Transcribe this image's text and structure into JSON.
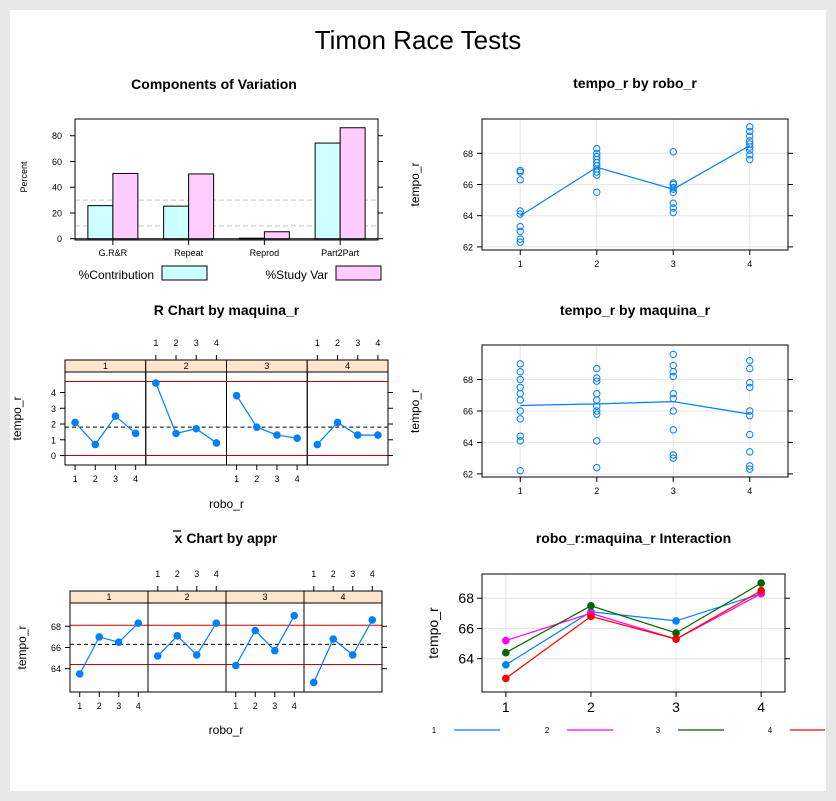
{
  "page": {
    "title": "Timon Race Tests"
  },
  "chart_data": [
    {
      "id": "components",
      "type": "bar",
      "title": "Components of Variation",
      "ylabel": "Percent",
      "categories": [
        "G.R&R",
        "Repeat",
        "Reprod",
        "Part2Part"
      ],
      "series": [
        {
          "name": "%Contribution",
          "color": "#ccffff",
          "values": [
            25.7,
            25.3,
            0.4,
            74.3
          ]
        },
        {
          "name": "%Study Var",
          "color": "#ffccff",
          "values": [
            50.7,
            50.3,
            5.4,
            86.2
          ]
        }
      ],
      "ylim": [
        -1,
        93
      ],
      "yticks": [
        "0",
        "20",
        "40",
        "60",
        "80"
      ],
      "reference_lines": [
        10,
        30
      ]
    },
    {
      "id": "tempo-by-robo",
      "type": "scatter",
      "title": "tempo_r by robo_r",
      "ylabel": "tempo_r",
      "categories": [
        "1",
        "2",
        "3",
        "4"
      ],
      "points": [
        [
          66.9,
          66.8,
          66.3,
          64.3,
          64.1,
          63.3,
          63.0,
          62.5,
          62.3
        ],
        [
          68.3,
          68.0,
          67.8,
          67.6,
          67.4,
          67.2,
          67.0,
          66.8,
          66.6,
          65.5
        ],
        [
          68.1,
          66.1,
          66.0,
          65.8,
          65.7,
          65.5,
          64.8,
          64.5,
          64.2
        ],
        [
          69.7,
          69.4,
          69.1,
          68.8,
          68.6,
          68.4,
          68.2,
          67.9,
          67.6
        ]
      ],
      "means": [
        64.0,
        67.1,
        65.7,
        68.5
      ],
      "ylim": [
        61.8,
        70.2
      ],
      "yticks": [
        "62",
        "64",
        "66",
        "68"
      ]
    },
    {
      "id": "r-chart",
      "type": "line",
      "title": "R Chart by maquina_r",
      "xlabel": "robo_r",
      "ylabel": "tempo_r",
      "panels": [
        "1",
        "2",
        "3",
        "4"
      ],
      "categories": [
        "1",
        "2",
        "3",
        "4"
      ],
      "values": [
        [
          2.1,
          0.7,
          2.5,
          1.4
        ],
        [
          4.6,
          1.4,
          1.7,
          0.8
        ],
        [
          3.8,
          1.8,
          1.3,
          1.1
        ],
        [
          0.7,
          2.1,
          1.3,
          1.3
        ]
      ],
      "center": 1.8,
      "limits": [
        0,
        4.7
      ],
      "ylim": [
        -0.6,
        5.3
      ],
      "yticks": [
        "0",
        "1",
        "2",
        "3",
        "4"
      ]
    },
    {
      "id": "tempo-by-maquina",
      "type": "scatter",
      "title": "tempo_r by maquina_r",
      "ylabel": "tempo_r",
      "categories": [
        "1",
        "2",
        "3",
        "4"
      ],
      "points": [
        [
          69.0,
          68.5,
          68.0,
          67.5,
          67.1,
          66.7,
          66.0,
          65.5,
          64.4,
          64.1,
          62.2
        ],
        [
          68.7,
          68.1,
          67.9,
          67.1,
          66.7,
          66.3,
          66.0,
          65.8,
          64.1,
          62.4
        ],
        [
          69.6,
          68.9,
          68.5,
          68.2,
          67.1,
          66.8,
          66.0,
          64.8,
          63.2,
          63.0
        ],
        [
          69.2,
          68.7,
          67.8,
          67.5,
          66.0,
          65.7,
          64.5,
          63.4,
          62.5,
          62.3
        ]
      ],
      "means": [
        66.35,
        66.45,
        66.6,
        65.8
      ],
      "ylim": [
        61.8,
        70.2
      ],
      "yticks": [
        "62",
        "64",
        "66",
        "68"
      ]
    },
    {
      "id": "xbar-chart",
      "type": "line",
      "title": "x Chart by appr",
      "xlabel": "robo_r",
      "ylabel": "tempo_r",
      "panels": [
        "1",
        "2",
        "3",
        "4"
      ],
      "categories": [
        "1",
        "2",
        "3",
        "4"
      ],
      "values": [
        [
          63.5,
          67.0,
          66.5,
          68.3
        ],
        [
          65.2,
          67.1,
          65.3,
          68.3
        ],
        [
          64.3,
          67.6,
          65.7,
          69.0
        ],
        [
          62.7,
          66.8,
          65.3,
          68.6
        ]
      ],
      "center": 66.3,
      "limits": [
        64.4,
        68.1
      ],
      "ylim": [
        61.8,
        70.2
      ],
      "yticks": [
        "64",
        "66",
        "68"
      ]
    },
    {
      "id": "interaction",
      "type": "line",
      "title": "robo_r:maquina_r Interaction",
      "ylabel": "tempo_r",
      "categories": [
        "1",
        "2",
        "3",
        "4"
      ],
      "series": [
        {
          "name": "1",
          "color": "#0080ff",
          "values": [
            63.6,
            67.1,
            66.5,
            68.3
          ]
        },
        {
          "name": "2",
          "color": "#ff00ff",
          "values": [
            65.2,
            67.0,
            65.3,
            68.3
          ]
        },
        {
          "name": "3",
          "color": "#006400",
          "values": [
            64.4,
            67.5,
            65.7,
            69.0
          ]
        },
        {
          "name": "4",
          "color": "#ff0000",
          "values": [
            62.7,
            66.8,
            65.3,
            68.5
          ]
        }
      ],
      "ylim": [
        61.8,
        69.6
      ],
      "yticks": [
        "64",
        "66",
        "68"
      ]
    }
  ],
  "colors": {
    "point": "#0080ff",
    "strip": "#ffe5cc",
    "limit": "#cc0000"
  }
}
